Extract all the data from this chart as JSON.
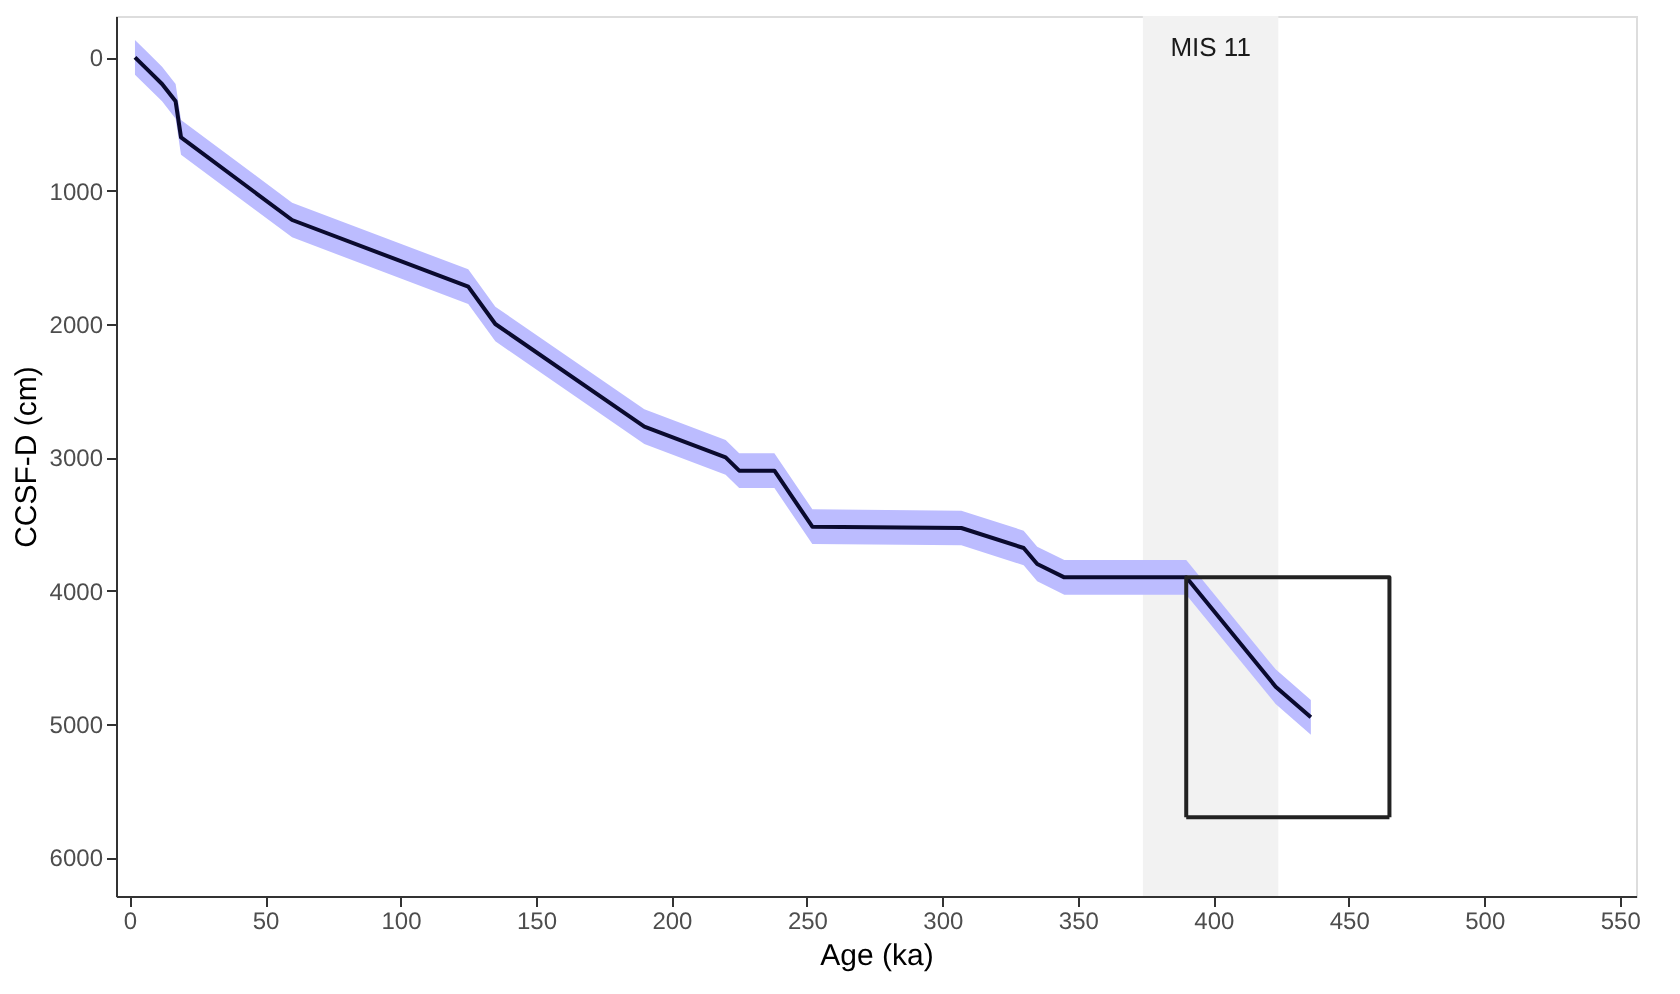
{
  "chart_data": {
    "type": "line",
    "xlabel": "Age (ka)",
    "ylabel": "CCSF-D (cm)",
    "xlim": [
      -5,
      556
    ],
    "xticks": [
      0,
      50,
      100,
      150,
      200,
      250,
      300,
      350,
      400,
      450,
      500,
      550
    ],
    "ylim": [
      6290,
      -310
    ],
    "yticks": [
      0,
      1000,
      2000,
      3000,
      4000,
      5000,
      6000
    ],
    "grid": false,
    "line_style": "solid",
    "marker": "none",
    "bands": [
      {
        "axis": "x",
        "from": 374,
        "to": 424,
        "label": "MIS 11",
        "color": "#f2f2f2"
      }
    ],
    "series": [
      {
        "color": "#0a0a2e",
        "x": [
          2,
          7,
          12,
          17,
          19,
          60,
          125,
          135,
          190,
          220,
          225,
          238,
          252,
          307,
          330,
          335,
          345,
          390,
          423,
          436
        ],
        "values": [
          0,
          100,
          200,
          330,
          600,
          1220,
          1720,
          2000,
          2770,
          3000,
          3100,
          3100,
          3520,
          3530,
          3680,
          3800,
          3900,
          3900,
          4720,
          4950
        ],
        "lower": [
          -130,
          -30,
          70,
          200,
          470,
          1090,
          1590,
          1870,
          2640,
          2870,
          2970,
          2970,
          3390,
          3400,
          3550,
          3670,
          3770,
          3770,
          4590,
          4820
        ],
        "upper": [
          130,
          230,
          330,
          460,
          730,
          1350,
          1850,
          2130,
          2900,
          3130,
          3230,
          3230,
          3650,
          3660,
          3810,
          3930,
          4030,
          4030,
          4850,
          5080
        ]
      },
      {
        "color": "#222222",
        "x": [
          390,
          390,
          465,
          465
        ],
        "values": [
          5700,
          3900,
          3900,
          5700
        ]
      },
      {
        "color": "#222222",
        "x": [
          390,
          465
        ],
        "values": [
          5700,
          5700
        ]
      }
    ]
  }
}
